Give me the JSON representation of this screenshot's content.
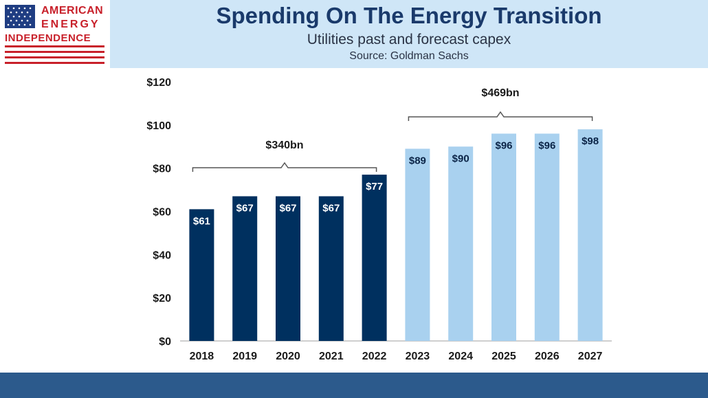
{
  "logo": {
    "line1": "AMERICAN",
    "line2": "ENERGY",
    "line3": "INDEPENDENCE",
    "flag_icon": "us-flag-icon"
  },
  "header": {
    "title": "Spending On The Energy Transition",
    "subtitle": "Utilities past and forecast capex",
    "source": "Source: Goldman Sachs"
  },
  "chart_data": {
    "type": "bar",
    "categories": [
      "2018",
      "2019",
      "2020",
      "2021",
      "2022",
      "2023",
      "2024",
      "2025",
      "2026",
      "2027"
    ],
    "series": [
      {
        "values": [
          61,
          67,
          67,
          67,
          77,
          89,
          90,
          96,
          96,
          98
        ]
      }
    ],
    "value_labels": [
      "$61",
      "$67",
      "$67",
      "$67",
      "$77",
      "$89",
      "$90",
      "$96",
      "$96",
      "$98"
    ],
    "bar_colors": [
      "#00305f",
      "#00305f",
      "#00305f",
      "#00305f",
      "#00305f",
      "#a9d1ef",
      "#a9d1ef",
      "#a9d1ef",
      "#a9d1ef",
      "#a9d1ef"
    ],
    "label_color_dark": "#ffffff",
    "label_color_light": "#0b2447",
    "yticks": [
      0,
      20,
      40,
      60,
      80,
      100,
      120
    ],
    "ytick_labels": [
      "$0",
      "$20",
      "$40",
      "$60",
      "$80",
      "$100",
      "$120"
    ],
    "ylim": [
      0,
      120
    ],
    "grid": false,
    "annotations": [
      {
        "text": "$340bn",
        "from": "2018",
        "to": "2022"
      },
      {
        "text": "$469bn",
        "from": "2023",
        "to": "2027"
      }
    ],
    "title": "",
    "xlabel": "",
    "ylabel": ""
  },
  "colors": {
    "header_bg": "#cfe6f7",
    "title": "#1a3a6b",
    "footer": "#2c5a8c",
    "logo_red": "#c8202a",
    "flag_blue": "#1f3d82"
  }
}
